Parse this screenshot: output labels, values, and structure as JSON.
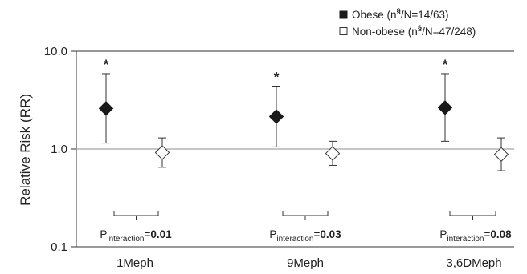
{
  "chart_data": {
    "type": "scatter",
    "subtype": "forest-plot-rr-with-95ci",
    "title": "",
    "xlabel": "",
    "ylabel": "Relative Risk (RR)",
    "yscale": "log",
    "ylim": [
      0.1,
      10.0
    ],
    "yticks": [
      "0.1",
      "1.0",
      "10.0"
    ],
    "reference_line": 1.0,
    "categories": [
      "1Meph",
      "9Meph",
      "3,6DMeph"
    ],
    "legend": {
      "position": "top-right",
      "entries": [
        {
          "marker": "filled-square",
          "text_prefix": "Obese (n",
          "superscript": "§",
          "text_suffix": "/N=14/63)"
        },
        {
          "marker": "open-square",
          "text_prefix": "Non-obese (n",
          "superscript": "§",
          "text_suffix": "/N=47/248)"
        }
      ]
    },
    "series": [
      {
        "marker": "filled-diamond",
        "color": "#1a1a1a",
        "values": [
          2.6,
          2.15,
          2.65
        ],
        "ci_lower": [
          1.15,
          1.05,
          1.2
        ],
        "ci_upper": [
          5.9,
          4.4,
          5.9
        ],
        "significance": [
          "*",
          "*",
          "*"
        ]
      },
      {
        "marker": "open-diamond",
        "color": "#ffffff",
        "values": [
          0.92,
          0.9,
          0.88
        ],
        "ci_lower": [
          0.65,
          0.68,
          0.6
        ],
        "ci_upper": [
          1.3,
          1.2,
          1.3
        ],
        "significance": [
          "",
          "",
          ""
        ]
      }
    ],
    "interaction": [
      {
        "prefix": "P",
        "subscript": "interaction",
        "equals": "=",
        "value": "0.01"
      },
      {
        "prefix": "P",
        "subscript": "interaction",
        "equals": "=",
        "value": "0.03"
      },
      {
        "prefix": "P",
        "subscript": "interaction",
        "equals": "=",
        "value": "0.08"
      }
    ],
    "colors": {
      "axis": "#333333",
      "reference_line": "#8c8c8c",
      "marker_fill": "#1a1a1a",
      "marker_open": "#ffffff"
    }
  }
}
